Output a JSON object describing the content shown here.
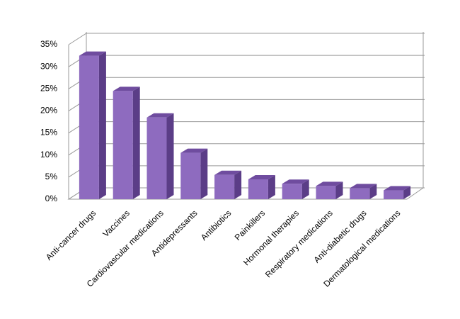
{
  "chart_data": {
    "type": "bar3d",
    "categories": [
      "Anti-cancer drugs",
      "Vaccines",
      "Cardiovascular medications",
      "Antidepressants",
      "Antibiotics",
      "Painkillers",
      "Hormonal therapies",
      "Respiratory medications",
      "Anti-diabetic drugs",
      "Dermatological medications"
    ],
    "values": [
      32.5,
      24.5,
      18.5,
      10.5,
      5.5,
      4.5,
      3.5,
      3,
      2.5,
      2
    ],
    "color": "#8e6bbf",
    "ylim": [
      0,
      35
    ],
    "yticks": [
      {
        "value": 0,
        "label": "0%"
      },
      {
        "value": 5,
        "label": "5%"
      },
      {
        "value": 10,
        "label": "10%"
      },
      {
        "value": 15,
        "label": "15%"
      },
      {
        "value": 20,
        "label": "20%"
      },
      {
        "value": 25,
        "label": "25%"
      },
      {
        "value": 30,
        "label": "30%"
      },
      {
        "value": 35,
        "label": "35%"
      }
    ],
    "grid": true
  }
}
